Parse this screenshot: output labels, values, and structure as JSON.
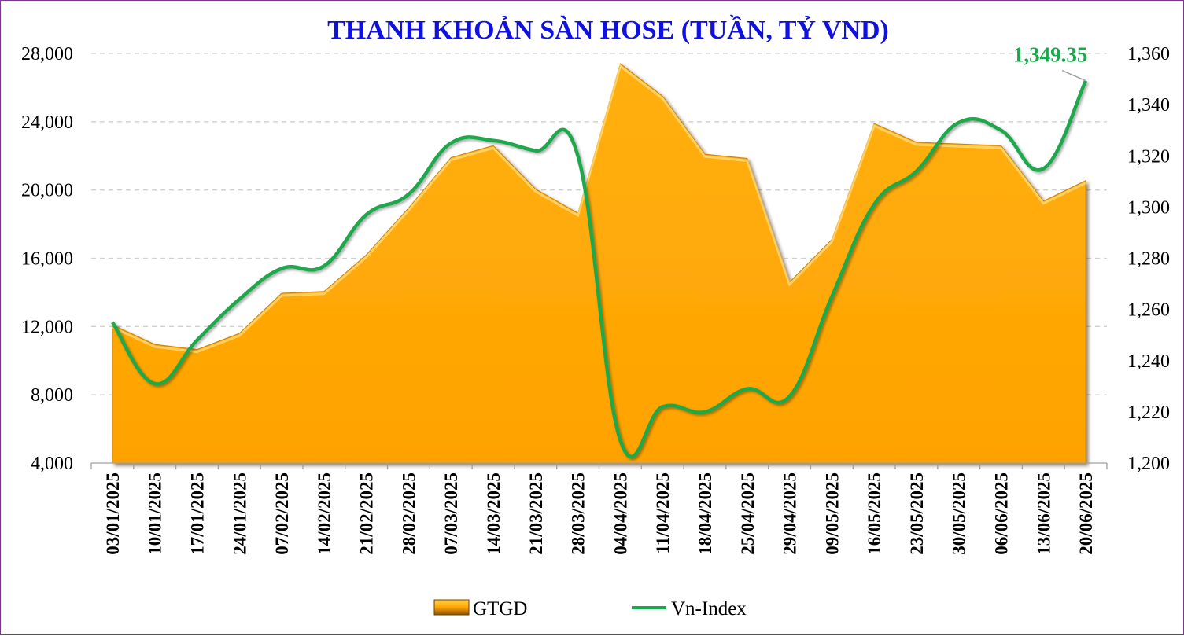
{
  "chart_data": {
    "type": "area",
    "title": "THANH KHOẢN SÀN HOSE (TUẦN, TỶ VND)",
    "categories": [
      "03/01/2025",
      "10/01/2025",
      "17/01/2025",
      "24/01/2025",
      "07/02/2025",
      "14/02/2025",
      "21/02/2025",
      "28/02/2025",
      "07/03/2025",
      "14/03/2025",
      "21/03/2025",
      "28/03/2025",
      "04/04/2025",
      "11/04/2025",
      "18/04/2025",
      "25/04/2025",
      "29/04/2025",
      "09/05/2025",
      "16/05/2025",
      "23/05/2025",
      "30/05/2025",
      "06/06/2025",
      "13/06/2025",
      "20/06/2025"
    ],
    "series": [
      {
        "name": "GTGD",
        "type": "area",
        "axis": "left",
        "color": "#ffa500",
        "values": [
          12100,
          10950,
          10650,
          11600,
          13950,
          14050,
          16200,
          18950,
          21900,
          22600,
          20050,
          18650,
          27400,
          25500,
          22100,
          21850,
          14600,
          17100,
          23900,
          22800,
          22700,
          22600,
          19350,
          20550
        ]
      },
      {
        "name": "Vn-Index",
        "type": "line",
        "axis": "right",
        "color": "#1aa84c",
        "values": [
          1255,
          1231,
          1248,
          1264,
          1276,
          1277,
          1297,
          1305,
          1325,
          1326,
          1322,
          1320,
          1209,
          1222,
          1220,
          1229,
          1226,
          1265,
          1301,
          1314,
          1333,
          1330,
          1315,
          1349.35
        ]
      }
    ],
    "y_left": {
      "min": 4000,
      "max": 28000,
      "ticks": [
        "4,000",
        "8,000",
        "12,000",
        "16,000",
        "20,000",
        "24,000",
        "28,000"
      ],
      "tick_values": [
        4000,
        8000,
        12000,
        16000,
        20000,
        24000,
        28000
      ]
    },
    "y_right": {
      "min": 1200,
      "max": 1360,
      "ticks": [
        "1,200",
        "1,220",
        "1,240",
        "1,260",
        "1,280",
        "1,300",
        "1,320",
        "1,340",
        "1,360"
      ],
      "tick_values": [
        1200,
        1220,
        1240,
        1260,
        1280,
        1300,
        1320,
        1340,
        1360
      ]
    },
    "grid": true,
    "legend_position": "bottom",
    "annotation": {
      "text": "1,349.35",
      "series": "Vn-Index",
      "point_index": 23,
      "color": "#1aa84c"
    }
  }
}
